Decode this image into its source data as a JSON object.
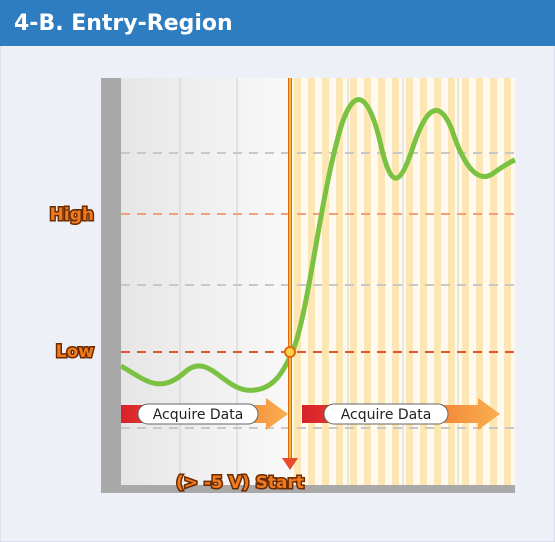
{
  "header": {
    "title": "4-B. Entry-Region"
  },
  "levels": {
    "high": "High",
    "low": "Low"
  },
  "arrows": [
    "Acquire Data",
    "Acquire Data"
  ],
  "trigger": "(> -5 V) Start"
}
